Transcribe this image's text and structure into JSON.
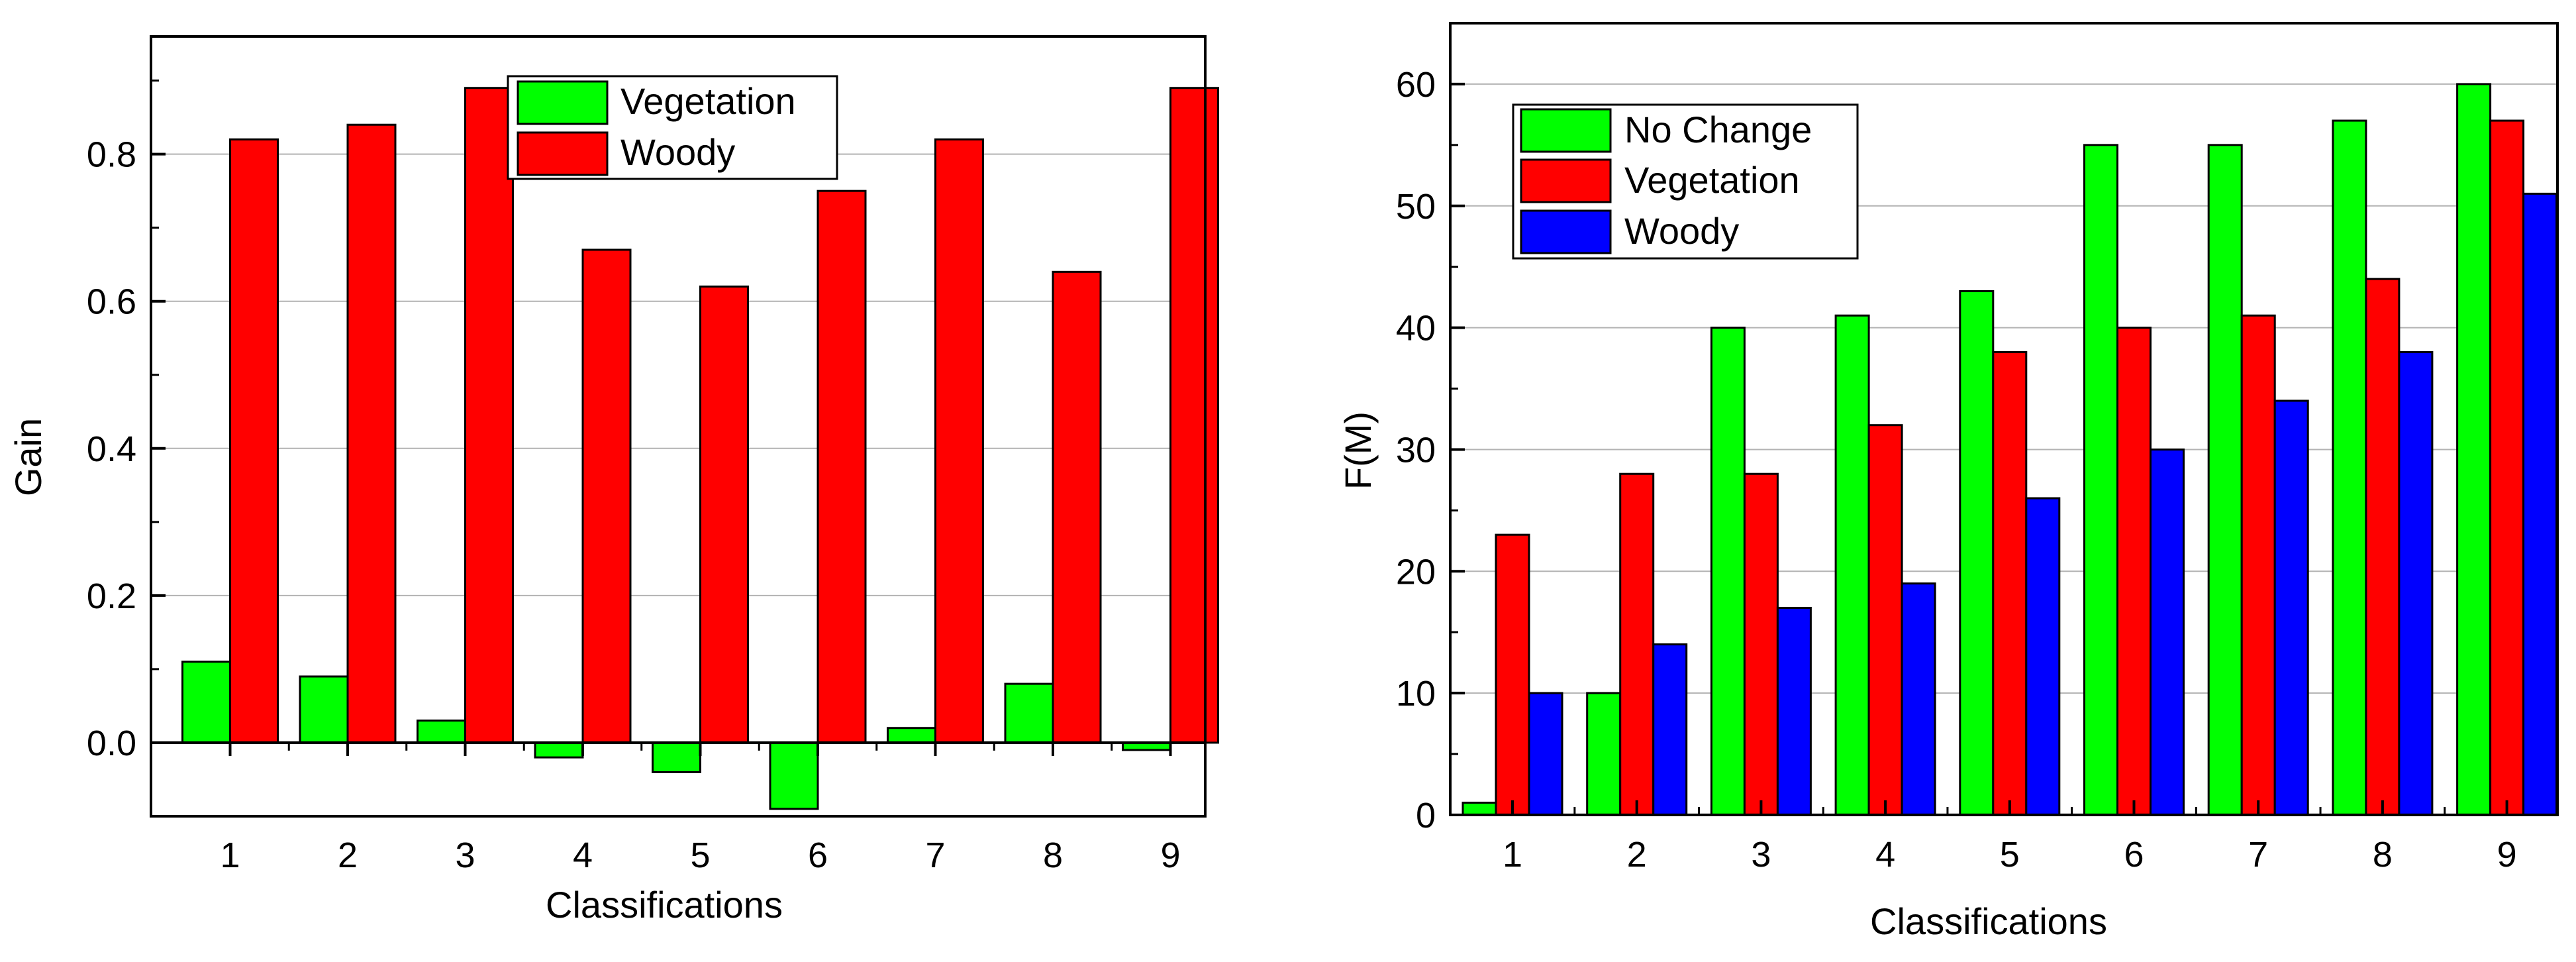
{
  "chart_data": [
    {
      "type": "bar",
      "title": "",
      "xlabel": "Classifications",
      "ylabel": "Gain",
      "categories": [
        "1",
        "2",
        "3",
        "4",
        "5",
        "6",
        "7",
        "8",
        "9"
      ],
      "ylim": [
        -0.1,
        0.96
      ],
      "yticks": [
        "0.0",
        "0.2",
        "0.4",
        "0.6",
        "0.8"
      ],
      "grid": "horizontal",
      "legend_position": "top-center",
      "series": [
        {
          "name": "Vegetation",
          "color": "#00ff00",
          "values": [
            0.11,
            0.09,
            0.03,
            -0.02,
            -0.04,
            -0.09,
            0.02,
            0.08,
            -0.01
          ]
        },
        {
          "name": "Woody",
          "color": "#ff0000",
          "values": [
            0.82,
            0.84,
            0.89,
            0.67,
            0.62,
            0.75,
            0.82,
            0.64,
            0.89
          ]
        }
      ]
    },
    {
      "type": "bar",
      "title": "",
      "xlabel": "Classifications",
      "ylabel": "F(M)",
      "categories": [
        "1",
        "2",
        "3",
        "4",
        "5",
        "6",
        "7",
        "8",
        "9"
      ],
      "ylim": [
        0,
        65
      ],
      "yticks": [
        "0",
        "10",
        "20",
        "30",
        "40",
        "50",
        "60"
      ],
      "grid": "horizontal",
      "legend_position": "top-left",
      "series": [
        {
          "name": "No Change",
          "color": "#00ff00",
          "values": [
            1,
            10,
            40,
            41,
            43,
            55,
            55,
            57,
            60
          ]
        },
        {
          "name": "Vegetation",
          "color": "#ff0000",
          "values": [
            23,
            28,
            28,
            32,
            38,
            40,
            41,
            44,
            57
          ]
        },
        {
          "name": "Woody",
          "color": "#0000ff",
          "values": [
            10,
            14,
            17,
            19,
            26,
            30,
            34,
            38,
            51
          ]
        }
      ]
    }
  ]
}
